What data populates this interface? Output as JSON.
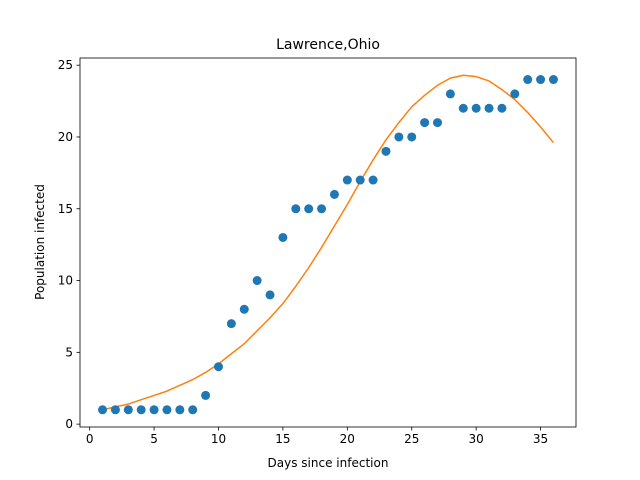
{
  "chart_data": {
    "type": "scatter",
    "title": "Lawrence,Ohio",
    "xlabel": "Days since infection",
    "ylabel": "Population infected",
    "xlim": [
      -0.75,
      37.75
    ],
    "ylim": [
      -0.2,
      25.5
    ],
    "xticks": [
      0,
      5,
      10,
      15,
      20,
      25,
      30,
      35
    ],
    "yticks": [
      0,
      5,
      10,
      15,
      20,
      25
    ],
    "grid": false,
    "series": [
      {
        "type": "scatter",
        "color": "#1f77b4",
        "x": [
          1,
          2,
          3,
          4,
          5,
          6,
          7,
          8,
          9,
          10,
          11,
          12,
          13,
          14,
          15,
          16,
          17,
          18,
          19,
          20,
          21,
          22,
          23,
          24,
          25,
          26,
          27,
          28,
          29,
          30,
          31,
          32,
          33,
          34,
          35,
          36
        ],
        "y": [
          1,
          1,
          1,
          1,
          1,
          1,
          1,
          1,
          2,
          4,
          7,
          8,
          10,
          9,
          13,
          15,
          15,
          15,
          16,
          17,
          17,
          17,
          19,
          20,
          20,
          21,
          21,
          23,
          22,
          22,
          22,
          22,
          23,
          24,
          24,
          24
        ]
      },
      {
        "type": "line",
        "color": "#ff7f0e",
        "x": [
          1,
          2,
          3,
          4,
          5,
          6,
          7,
          8,
          9,
          10,
          11,
          12,
          13,
          14,
          15,
          16,
          17,
          18,
          19,
          20,
          21,
          22,
          23,
          24,
          25,
          26,
          27,
          28,
          29,
          30,
          31,
          32,
          33,
          34,
          35,
          36
        ],
        "y": [
          1.0,
          1.2,
          1.4,
          1.7,
          2.0,
          2.3,
          2.7,
          3.1,
          3.6,
          4.2,
          4.9,
          5.6,
          6.5,
          7.4,
          8.4,
          9.6,
          10.9,
          12.3,
          13.8,
          15.3,
          16.9,
          18.4,
          19.8,
          21.0,
          22.1,
          22.9,
          23.6,
          24.1,
          24.3,
          24.2,
          23.9,
          23.3,
          22.6,
          21.7,
          20.7,
          19.6
        ]
      }
    ]
  }
}
